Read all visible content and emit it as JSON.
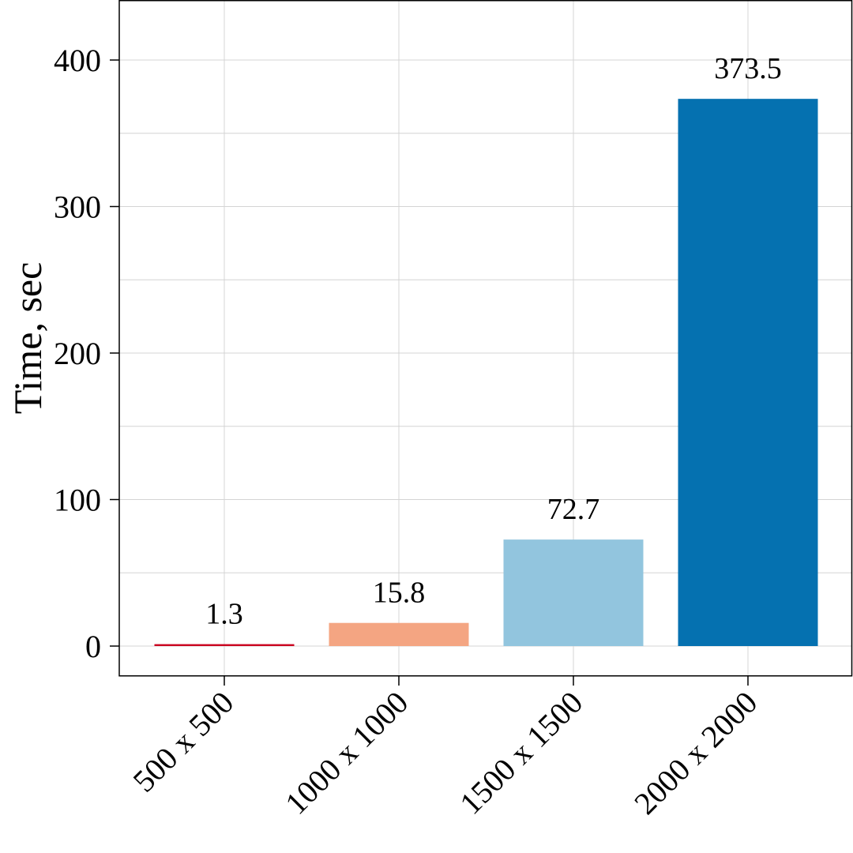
{
  "chart_data": {
    "type": "bar",
    "categories": [
      "500 x 500",
      "1000 x 1000",
      "1500 x 1500",
      "2000 x 2000"
    ],
    "values": [
      1.3,
      15.8,
      72.7,
      373.5
    ],
    "value_labels": [
      "1.3",
      "15.8",
      "72.7",
      "373.5"
    ],
    "colors": [
      "#ca0020",
      "#f4a582",
      "#92c5de",
      "#0571b0"
    ],
    "ylabel": "Time, sec",
    "xlabel": "",
    "title": "",
    "ylim": [
      -20,
      440
    ],
    "yticks": [
      0,
      100,
      200,
      300,
      400
    ],
    "ytick_labels": [
      "0",
      "100",
      "200",
      "300",
      "400"
    ],
    "grid": true,
    "legend": "none"
  }
}
